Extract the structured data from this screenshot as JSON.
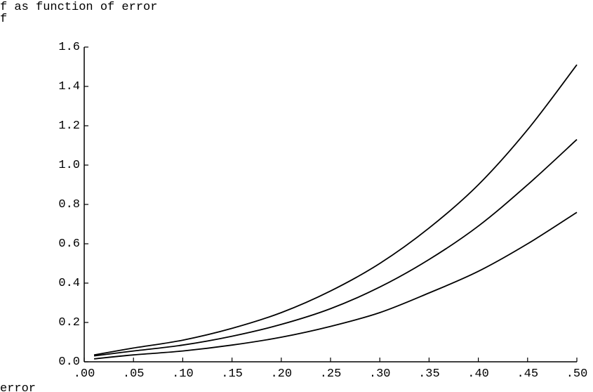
{
  "chart_data": {
    "type": "line",
    "title": "f as function of error",
    "ylabel": "f",
    "xlabel": "error",
    "xlim": [
      0.0,
      0.5
    ],
    "ylim": [
      0.0,
      1.6
    ],
    "x_ticks": [
      0.0,
      0.05,
      0.1,
      0.15,
      0.2,
      0.25,
      0.3,
      0.35,
      0.4,
      0.45,
      0.5
    ],
    "x_tick_labels": [
      ".00",
      ".05",
      ".10",
      ".15",
      ".20",
      ".25",
      ".30",
      ".35",
      ".40",
      ".45",
      ".50"
    ],
    "y_ticks": [
      0.0,
      0.2,
      0.4,
      0.6,
      0.8,
      1.0,
      1.2,
      1.4,
      1.6
    ],
    "y_tick_labels": [
      "0.0",
      "0.2",
      "0.4",
      "0.6",
      "0.8",
      "1.0",
      "1.2",
      "1.4",
      "1.6"
    ],
    "grid": false,
    "legend": "none",
    "x": [
      0.01,
      0.05,
      0.1,
      0.15,
      0.2,
      0.25,
      0.3,
      0.35,
      0.4,
      0.45,
      0.5
    ],
    "series": [
      {
        "values": [
          0.035,
          0.07,
          0.11,
          0.17,
          0.25,
          0.36,
          0.5,
          0.68,
          0.9,
          1.18,
          1.51
        ]
      },
      {
        "values": [
          0.03,
          0.055,
          0.085,
          0.13,
          0.19,
          0.27,
          0.38,
          0.52,
          0.69,
          0.9,
          1.13
        ]
      },
      {
        "values": [
          0.015,
          0.035,
          0.055,
          0.085,
          0.125,
          0.18,
          0.25,
          0.35,
          0.46,
          0.6,
          0.76
        ]
      }
    ],
    "line_color": "#000000"
  }
}
